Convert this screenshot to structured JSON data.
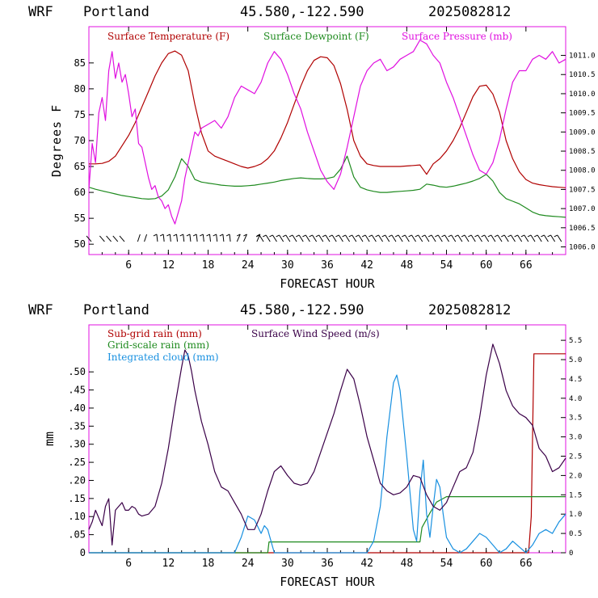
{
  "header": {
    "model": "WRF",
    "location": "Portland",
    "coords": "45.580,-122.590",
    "run": "2025082812"
  },
  "colors": {
    "temperature": "#b00000",
    "dewpoint": "#1e8a1e",
    "pressure": "#e010e0",
    "subgrid_rain": "#b00000",
    "grid_rain": "#1e8a1e",
    "cloud": "#1890e0",
    "wind": "#3a0048",
    "barb": "#000000",
    "frame": "#e010e0"
  },
  "chart_data": [
    {
      "type": "line",
      "xlabel": "FORECAST HOUR",
      "ylabel": "Degrees F",
      "xlim": [
        0,
        72
      ],
      "ylim": [
        48,
        92
      ],
      "y2lim": [
        1005.8,
        1011.75
      ],
      "x_ticks": [
        6,
        12,
        18,
        24,
        30,
        36,
        42,
        48,
        54,
        60,
        66
      ],
      "y_ticks": [
        50,
        55,
        60,
        65,
        70,
        75,
        80,
        85
      ],
      "y2_ticks": [
        "1006.0",
        "1006.5",
        "1007.0",
        "1007.5",
        "1008.0",
        "1008.5",
        "1009.0",
        "1009.5",
        "1010.0",
        "1010.5",
        "1011.0"
      ],
      "series": [
        {
          "name": "Surface Temperature (F)",
          "axis": "left",
          "x": [
            0,
            1,
            2,
            3,
            4,
            5,
            6,
            7,
            8,
            9,
            10,
            11,
            12,
            13,
            14,
            15,
            16,
            17,
            18,
            19,
            20,
            21,
            22,
            23,
            24,
            25,
            26,
            27,
            28,
            29,
            30,
            31,
            32,
            33,
            34,
            35,
            36,
            37,
            38,
            39,
            40,
            41,
            42,
            43,
            44,
            45,
            46,
            47,
            48,
            49,
            50,
            51,
            52,
            53,
            54,
            55,
            56,
            57,
            58,
            59,
            60,
            61,
            62,
            63,
            64,
            65,
            66,
            67,
            68,
            69,
            70,
            71,
            72
          ],
          "y": [
            65.5,
            65.5,
            65.6,
            66,
            67,
            69,
            71,
            73.5,
            76.5,
            79.5,
            82.5,
            85,
            86.8,
            87.3,
            86.5,
            83.5,
            77,
            71.5,
            68,
            67,
            66.5,
            66,
            65.5,
            65,
            64.7,
            65,
            65.5,
            66.5,
            68,
            70.5,
            73.5,
            77,
            80.5,
            83.5,
            85.5,
            86.2,
            86,
            84.5,
            81,
            76,
            70,
            67,
            65.5,
            65.2,
            65,
            65,
            65,
            65,
            65.1,
            65.2,
            65.3,
            63.5,
            65.5,
            66.5,
            68,
            70,
            72.5,
            75.5,
            78.5,
            80.5,
            80.7,
            79,
            75.5,
            70,
            66.5,
            64,
            62.5,
            61.8,
            61.5,
            61.3,
            61.1,
            61,
            60.9
          ]
        },
        {
          "name": "Surface Dewpoint (F)",
          "axis": "left",
          "x": [
            0,
            1,
            2,
            3,
            4,
            5,
            6,
            7,
            8,
            9,
            10,
            11,
            12,
            13,
            14,
            15,
            16,
            17,
            18,
            19,
            20,
            21,
            22,
            23,
            24,
            25,
            26,
            27,
            28,
            29,
            30,
            31,
            32,
            33,
            34,
            35,
            36,
            37,
            38,
            39,
            40,
            41,
            42,
            43,
            44,
            45,
            46,
            47,
            48,
            49,
            50,
            51,
            52,
            53,
            54,
            55,
            56,
            57,
            58,
            59,
            60,
            61,
            62,
            63,
            64,
            65,
            66,
            67,
            68,
            69,
            70,
            71,
            72
          ],
          "y": [
            61,
            60.6,
            60.3,
            60,
            59.7,
            59.4,
            59.2,
            59,
            58.8,
            58.7,
            58.8,
            59.3,
            60.5,
            63,
            66.5,
            65,
            62.5,
            62,
            61.8,
            61.6,
            61.4,
            61.3,
            61.2,
            61.2,
            61.3,
            61.4,
            61.6,
            61.8,
            62,
            62.3,
            62.5,
            62.7,
            62.8,
            62.7,
            62.6,
            62.6,
            62.7,
            63,
            64.5,
            67,
            63,
            61,
            60.5,
            60.2,
            60,
            60,
            60.1,
            60.2,
            60.3,
            60.4,
            60.6,
            61.6,
            61.4,
            61.1,
            61,
            61.2,
            61.5,
            61.8,
            62.2,
            62.7,
            63.5,
            62.2,
            60,
            58.8,
            58.3,
            57.8,
            57,
            56.2,
            55.7,
            55.5,
            55.4,
            55.3,
            55.2
          ]
        },
        {
          "name": "Surface Pressure (mb)",
          "axis": "right",
          "x": [
            0,
            0.5,
            1,
            1.5,
            2,
            2.5,
            3,
            3.5,
            4,
            4.5,
            5,
            5.5,
            6,
            6.5,
            7,
            7.5,
            8,
            8.5,
            9,
            9.5,
            10,
            10.5,
            11,
            11.5,
            12,
            12.5,
            13,
            13.5,
            14,
            14.5,
            15,
            15.5,
            16,
            16.5,
            17,
            18,
            19,
            20,
            21,
            22,
            23,
            24,
            25,
            26,
            27,
            28,
            29,
            30,
            31,
            32,
            33,
            34,
            35,
            36,
            37,
            38,
            39,
            40,
            41,
            42,
            43,
            44,
            45,
            46,
            47,
            48,
            49,
            50,
            51,
            52,
            53,
            54,
            55,
            56,
            57,
            58,
            59,
            60,
            61,
            62,
            63,
            64,
            65,
            66,
            67,
            68,
            69,
            70,
            71,
            72
          ],
          "y": [
            1007.5,
            1008.7,
            1008.2,
            1009.5,
            1009.9,
            1009.3,
            1010.6,
            1011.1,
            1010.4,
            1010.8,
            1010.3,
            1010.5,
            1010.0,
            1009.4,
            1009.6,
            1008.7,
            1008.6,
            1008.2,
            1007.8,
            1007.5,
            1007.6,
            1007.3,
            1007.2,
            1007.0,
            1007.1,
            1006.8,
            1006.6,
            1006.9,
            1007.2,
            1007.8,
            1008.2,
            1008.6,
            1009.0,
            1008.9,
            1009.1,
            1009.2,
            1009.3,
            1009.1,
            1009.4,
            1009.9,
            1010.2,
            1010.1,
            1010.0,
            1010.3,
            1010.8,
            1011.1,
            1010.9,
            1010.5,
            1010.0,
            1009.6,
            1009.0,
            1008.5,
            1008.0,
            1007.7,
            1007.5,
            1007.9,
            1008.6,
            1009.4,
            1010.2,
            1010.6,
            1010.8,
            1010.9,
            1010.6,
            1010.7,
            1010.9,
            1011.0,
            1011.1,
            1011.4,
            1011.3,
            1011.0,
            1010.8,
            1010.3,
            1009.9,
            1009.4,
            1008.9,
            1008.4,
            1008.0,
            1007.9,
            1008.2,
            1008.8,
            1009.6,
            1010.3,
            1010.6,
            1010.6,
            1010.9,
            1011.0,
            1010.9,
            1011.1,
            1010.8,
            1010.9
          ]
        }
      ],
      "wind_barb_hours": [
        0,
        2,
        3,
        4,
        5,
        7,
        8,
        10,
        11,
        12,
        13,
        14,
        15,
        16,
        17,
        18,
        19,
        20,
        21,
        22,
        23,
        25,
        26,
        27,
        28,
        29,
        30,
        31,
        32,
        33,
        34,
        35,
        36,
        37,
        38,
        39,
        40,
        41,
        42,
        43,
        44,
        45,
        46,
        47,
        48,
        49,
        50,
        51,
        52,
        53,
        54,
        55,
        56,
        57,
        58,
        59,
        60,
        61,
        62,
        63,
        64,
        65,
        66,
        67,
        68,
        69,
        70,
        71
      ]
    },
    {
      "type": "line",
      "xlabel": "FORECAST HOUR",
      "ylabel": "mm",
      "xlim": [
        0,
        72
      ],
      "ylim": [
        0,
        0.63
      ],
      "y2lim": [
        0,
        5.9
      ],
      "x_ticks": [
        6,
        12,
        18,
        24,
        30,
        36,
        42,
        48,
        54,
        60,
        66
      ],
      "y_ticks": [
        "0",
        ".05",
        ".10",
        ".15",
        ".20",
        ".25",
        ".30",
        ".35",
        ".40",
        ".45",
        ".50"
      ],
      "y2_ticks": [
        "0",
        "0.5",
        "1.0",
        "1.5",
        "2.0",
        "2.5",
        "3.0",
        "3.5",
        "4.0",
        "4.5",
        "5.0",
        "5.5"
      ],
      "series": [
        {
          "name": "Sub-grid rain (mm)",
          "axis": "left",
          "x": [
            0,
            66.4,
            66.8,
            67.2,
            68,
            72
          ],
          "y": [
            0,
            0,
            0.1,
            0.55,
            0.55,
            0.55
          ]
        },
        {
          "name": "Grid-scale rain (mm)",
          "axis": "left",
          "x": [
            0,
            27,
            27.2,
            50,
            50.3,
            51.5,
            52.5,
            53.5,
            54,
            72
          ],
          "y": [
            0,
            0,
            0.03,
            0.03,
            0.07,
            0.11,
            0.14,
            0.15,
            0.155,
            0.155
          ]
        },
        {
          "name": "Integrated cloud (mm)",
          "axis": "right",
          "x": [
            0,
            22,
            23,
            24,
            25,
            26,
            26.5,
            27,
            28,
            42,
            43,
            44,
            45,
            46,
            46.5,
            47,
            48,
            49,
            49.5,
            50,
            50.5,
            51,
            51.5,
            52,
            52.5,
            53,
            53.5,
            54,
            55,
            56,
            57,
            58,
            59,
            60,
            61,
            62,
            63,
            64,
            65,
            66,
            67,
            68,
            69,
            70,
            71,
            72
          ],
          "y": [
            0,
            0,
            0.4,
            0.95,
            0.85,
            0.5,
            0.7,
            0.6,
            0,
            0,
            0.3,
            1.2,
            3.0,
            4.4,
            4.6,
            4.2,
            2.5,
            0.6,
            0.3,
            1.6,
            2.4,
            1.0,
            0.4,
            1.2,
            1.9,
            1.7,
            1.0,
            0.4,
            0.1,
            0,
            0.1,
            0.3,
            0.5,
            0.4,
            0.2,
            0,
            0.1,
            0.3,
            0.15,
            0,
            0.2,
            0.5,
            0.6,
            0.5,
            0.8,
            1.0
          ]
        },
        {
          "name": "Surface Wind Speed (m/s)",
          "axis": "right",
          "x": [
            0,
            0.5,
            1,
            1.5,
            2,
            2.5,
            3,
            3.5,
            4,
            4.5,
            5,
            5.5,
            6,
            6.5,
            7,
            7.5,
            8,
            9,
            10,
            11,
            12,
            13,
            14,
            14.5,
            15,
            15.5,
            16,
            17,
            18,
            19,
            20,
            21,
            22,
            23,
            24,
            25,
            26,
            27,
            28,
            29,
            30,
            31,
            32,
            33,
            34,
            35,
            36,
            37,
            38,
            39,
            40,
            41,
            42,
            43,
            44,
            45,
            46,
            47,
            48,
            49,
            50,
            51,
            52,
            53,
            54,
            55,
            56,
            57,
            58,
            59,
            60,
            61,
            62,
            63,
            64,
            65,
            66,
            67,
            68,
            69,
            70,
            71,
            72
          ],
          "y": [
            0.6,
            0.8,
            1.1,
            0.9,
            0.7,
            1.2,
            1.4,
            0.2,
            1.1,
            1.2,
            1.3,
            1.1,
            1.1,
            1.2,
            1.15,
            1.0,
            0.95,
            1.0,
            1.2,
            1.8,
            2.7,
            3.8,
            4.8,
            5.25,
            5.1,
            4.7,
            4.2,
            3.4,
            2.8,
            2.1,
            1.7,
            1.6,
            1.3,
            1.0,
            0.6,
            0.6,
            1.0,
            1.6,
            2.1,
            2.25,
            2.0,
            1.8,
            1.75,
            1.8,
            2.1,
            2.6,
            3.1,
            3.6,
            4.2,
            4.75,
            4.5,
            3.8,
            3.0,
            2.4,
            1.8,
            1.6,
            1.5,
            1.55,
            1.7,
            2.0,
            1.95,
            1.5,
            1.2,
            1.1,
            1.3,
            1.7,
            2.1,
            2.2,
            2.6,
            3.5,
            4.6,
            5.4,
            4.9,
            4.2,
            3.8,
            3.6,
            3.5,
            3.3,
            2.7,
            2.5,
            2.1,
            2.2,
            2.45
          ]
        }
      ]
    }
  ]
}
